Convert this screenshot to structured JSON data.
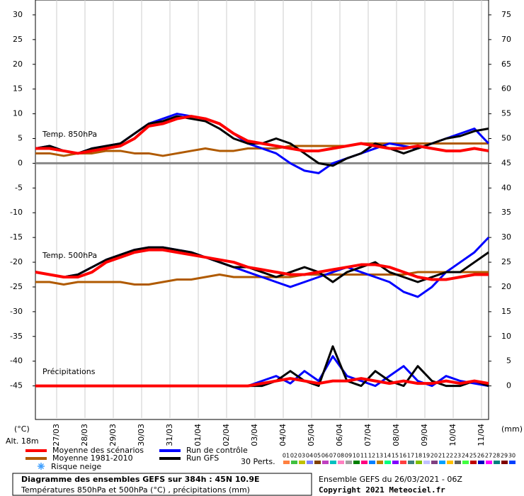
{
  "chart_data": {
    "type": "ensemble",
    "title": "Diagramme des ensembles GEFS sur 384h : 45N 10.9E",
    "subtitle": "Températures 850hPa et 500hPa (°C) , précipitations (mm)",
    "run_label": "Ensemble GEFS du 26/03/2021 - 06Z",
    "copyright": "Copyright 2021 Meteociel.fr",
    "y_label": "(°C)",
    "y2_label": "(mm)",
    "altitude": "Alt. 18m",
    "panel_labels": {
      "t850": "Temp. 850hPa",
      "t500": "Temp. 500hPa",
      "precip": "Précipitations"
    },
    "snow_label": "Risque neige",
    "perts_label": "30 Perts.",
    "perts": {
      "labels": [
        "01",
        "02",
        "03",
        "04",
        "05",
        "06",
        "07",
        "08",
        "09",
        "10",
        "11",
        "12",
        "13",
        "14",
        "15",
        "16",
        "17",
        "18",
        "19",
        "20",
        "21",
        "22",
        "23",
        "24",
        "25",
        "26",
        "27",
        "28",
        "29",
        "30"
      ],
      "colors": [
        "#ff8040",
        "#40c040",
        "#c0c000",
        "#8080ff",
        "#804000",
        "#c040c0",
        "#00c0c0",
        "#ff80c0",
        "#a0a0a0",
        "#008000",
        "#ff0080",
        "#0080ff",
        "#c08000",
        "#00ff80",
        "#8000ff",
        "#ff4040",
        "#408080",
        "#80c000",
        "#c0c0ff",
        "#804080",
        "#00a0ff",
        "#ffc000",
        "#606060",
        "#40ff40",
        "#c00000",
        "#0000c0",
        "#ff00ff",
        "#008080",
        "#800000",
        "#0040ff"
      ]
    },
    "xlim": [
      0,
      384
    ],
    "x": [
      0,
      12,
      24,
      36,
      48,
      60,
      72,
      84,
      96,
      108,
      120,
      132,
      144,
      156,
      168,
      180,
      192,
      204,
      216,
      228,
      240,
      252,
      264,
      276,
      288,
      300,
      312,
      324,
      336,
      348,
      360,
      372,
      384
    ],
    "xticks": [
      {
        "value": 18,
        "label": "27/03"
      },
      {
        "value": 42,
        "label": "28/03"
      },
      {
        "value": 66,
        "label": "29/03"
      },
      {
        "value": 90,
        "label": "30/03"
      },
      {
        "value": 114,
        "label": "31/03"
      },
      {
        "value": 138,
        "label": "01/04"
      },
      {
        "value": 162,
        "label": "02/04"
      },
      {
        "value": 186,
        "label": "03/04"
      },
      {
        "value": 210,
        "label": "04/04"
      },
      {
        "value": 234,
        "label": "05/04"
      },
      {
        "value": 258,
        "label": "06/04"
      },
      {
        "value": 282,
        "label": "07/04"
      },
      {
        "value": 306,
        "label": "08/04"
      },
      {
        "value": 330,
        "label": "09/04"
      },
      {
        "value": 354,
        "label": "10/04"
      },
      {
        "value": 378,
        "label": "11/04"
      }
    ],
    "ylim": [
      -51.5,
      33
    ],
    "yticks": [
      30,
      25,
      20,
      15,
      10,
      5,
      0,
      -5,
      -10,
      -15,
      -20,
      -25,
      -30,
      -35,
      -40,
      -45
    ],
    "y2lim": [
      -6.5,
      78
    ],
    "y2ticks": [
      75,
      70,
      65,
      60,
      55,
      50,
      45,
      40,
      35,
      30,
      25,
      20,
      15,
      10,
      5,
      0
    ],
    "precip_axis": "y2",
    "grid": "x",
    "zero_line": true,
    "series": [
      {
        "name": "Moyenne des scénarios",
        "color": "#ff0000",
        "width": 4,
        "t850": [
          3,
          3,
          2.5,
          2,
          2.5,
          3,
          3.5,
          5,
          7.5,
          8,
          9,
          9.5,
          9,
          8,
          6,
          4.5,
          4,
          3.5,
          3,
          2.5,
          2.5,
          3,
          3.5,
          4,
          3.5,
          3,
          3,
          3.5,
          3,
          2.5,
          2.5,
          3,
          2.5
        ],
        "t500": [
          -22,
          -22.5,
          -23,
          -23,
          -22,
          -20,
          -19,
          -18,
          -17.5,
          -17.5,
          -18,
          -18.5,
          -19,
          -19.5,
          -20,
          -21,
          -21.5,
          -22,
          -22.5,
          -22.5,
          -22,
          -21.5,
          -21,
          -20.5,
          -20.5,
          -21,
          -22,
          -23,
          -23.5,
          -23.5,
          -23,
          -22.5,
          -22.5
        ],
        "precip": [
          0,
          0,
          0,
          0,
          0,
          0,
          0,
          0,
          0,
          0,
          0,
          0,
          0,
          0,
          0,
          0,
          0.5,
          1,
          1.5,
          1,
          0.5,
          1,
          1,
          1.5,
          1,
          0.5,
          1,
          0.5,
          0.5,
          1,
          0.5,
          1,
          0.5
        ]
      },
      {
        "name": "Moyenne 1981-2010",
        "color": "#b05a00",
        "width": 3,
        "t850": [
          2,
          2,
          1.5,
          2,
          2,
          2.5,
          2.5,
          2,
          2,
          1.5,
          2,
          2.5,
          3,
          2.5,
          2.5,
          3,
          3,
          3,
          3.5,
          3.5,
          3.5,
          3.5,
          3.5,
          4,
          4,
          4,
          4,
          4,
          4,
          4,
          4,
          4,
          4
        ],
        "t500": [
          -24,
          -24,
          -24.5,
          -24,
          -24,
          -24,
          -24,
          -24.5,
          -24.5,
          -24,
          -23.5,
          -23.5,
          -23,
          -22.5,
          -23,
          -23,
          -23,
          -23,
          -23,
          -22.5,
          -22.5,
          -22.5,
          -22.5,
          -22.5,
          -22.5,
          -22.5,
          -22.5,
          -22,
          -22,
          -22,
          -22,
          -22,
          -22
        ]
      },
      {
        "name": "Run de contrôle",
        "color": "#0000ff",
        "width": 3,
        "t850": [
          3,
          3.5,
          2.5,
          2,
          3,
          3.5,
          4,
          6,
          8,
          9,
          10,
          9.5,
          9,
          8,
          6,
          4,
          3,
          2,
          0,
          -1.5,
          -2,
          0,
          1,
          2,
          3,
          4,
          3.5,
          3,
          4,
          5,
          6,
          7,
          4
        ],
        "t500": [
          -22,
          -22.5,
          -23,
          -22.5,
          -21,
          -19.5,
          -18.5,
          -17.5,
          -17,
          -17,
          -17.5,
          -18,
          -19,
          -20,
          -21,
          -22,
          -23,
          -24,
          -25,
          -24,
          -23,
          -22,
          -21,
          -22,
          -23,
          -24,
          -26,
          -27,
          -25,
          -22,
          -20,
          -18,
          -15
        ],
        "precip": [
          0,
          0,
          0,
          0,
          0,
          0,
          0,
          0,
          0,
          0,
          0,
          0,
          0,
          0,
          0,
          0,
          1,
          2,
          0.5,
          3,
          1,
          6,
          2,
          1,
          0,
          2,
          4,
          1,
          0,
          2,
          1,
          0.5,
          0
        ]
      },
      {
        "name": "Run GFS",
        "color": "#000000",
        "width": 3,
        "t850": [
          3,
          3.5,
          2.5,
          2,
          3,
          3.5,
          4,
          6,
          8,
          8.5,
          9.5,
          9,
          8.5,
          7,
          5,
          4,
          4,
          5,
          4,
          2,
          0,
          -0.5,
          1,
          2,
          4,
          3,
          2,
          3,
          4,
          5,
          5.5,
          6.5,
          7
        ],
        "t500": [
          -22,
          -22.5,
          -23,
          -22.5,
          -21,
          -19.5,
          -18.5,
          -17.5,
          -17,
          -17,
          -17.5,
          -18,
          -19,
          -20,
          -21,
          -21,
          -22,
          -23,
          -22,
          -21,
          -22,
          -24,
          -22,
          -21,
          -20,
          -22,
          -23,
          -24,
          -23,
          -22,
          -22,
          -20,
          -18
        ],
        "precip": [
          0,
          0,
          0,
          0,
          0,
          0,
          0,
          0,
          0,
          0,
          0,
          0,
          0,
          0,
          0,
          0,
          0,
          1,
          3,
          1,
          0,
          8,
          1,
          0,
          3,
          1,
          0,
          4,
          1,
          0,
          0,
          1,
          0
        ]
      }
    ]
  }
}
